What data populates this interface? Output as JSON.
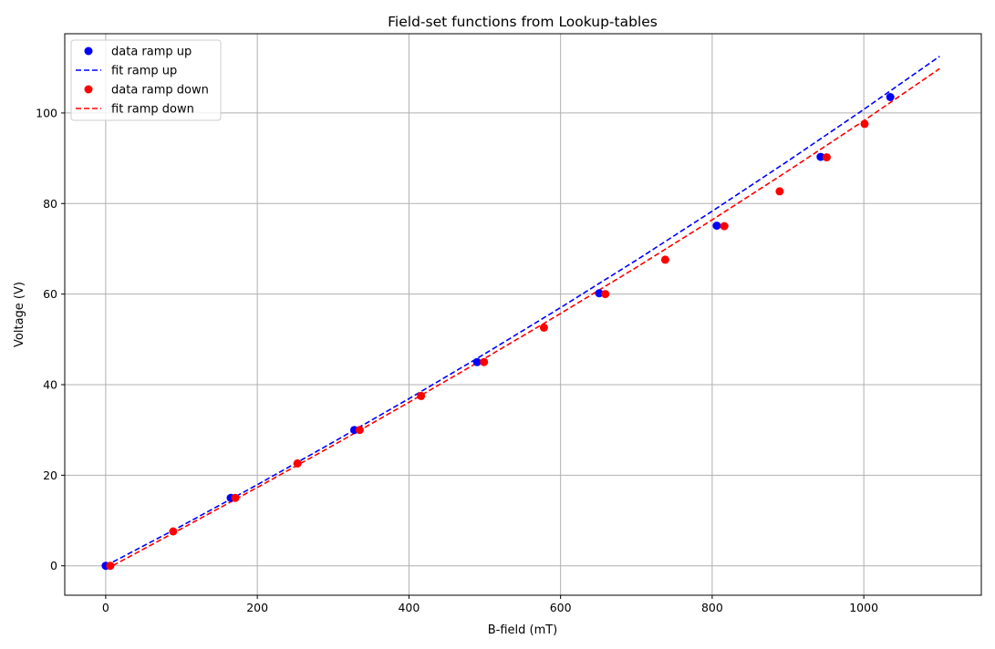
{
  "chart_data": {
    "type": "scatter",
    "title": "Field-set functions from Lookup-tables",
    "xlabel": "B-field (mT)",
    "ylabel": "Voltage (V)",
    "xlim": [
      -54,
      1155
    ],
    "ylim": [
      -6.5,
      117.5
    ],
    "xticks": [
      0,
      200,
      400,
      600,
      800,
      1000
    ],
    "yticks": [
      0,
      20,
      40,
      60,
      80,
      100
    ],
    "grid": true,
    "legend_position": "top-left",
    "series": [
      {
        "name": "data ramp up",
        "kind": "points",
        "color": "#0000ff",
        "points": [
          [
            0,
            0
          ],
          [
            165,
            15
          ],
          [
            328,
            30
          ],
          [
            490,
            45
          ],
          [
            651,
            60.2
          ],
          [
            806,
            75.1
          ],
          [
            943,
            90.3
          ],
          [
            1035,
            103.5
          ]
        ]
      },
      {
        "name": "fit ramp up",
        "kind": "dashed-line",
        "color": "#0000ff",
        "points": [
          [
            0,
            0
          ],
          [
            100,
            8.8
          ],
          [
            200,
            17.9
          ],
          [
            300,
            27.3
          ],
          [
            400,
            36.9
          ],
          [
            500,
            46.8
          ],
          [
            600,
            57.0
          ],
          [
            700,
            67.5
          ],
          [
            800,
            78.3
          ],
          [
            900,
            89.4
          ],
          [
            1000,
            100.8
          ],
          [
            1100,
            112.5
          ]
        ]
      },
      {
        "name": "data ramp down",
        "kind": "points",
        "color": "#ff0000",
        "points": [
          [
            6,
            0
          ],
          [
            89,
            7.6
          ],
          [
            171,
            15
          ],
          [
            253,
            22.6
          ],
          [
            335,
            30
          ],
          [
            416,
            37.5
          ],
          [
            499,
            45
          ],
          [
            578,
            52.6
          ],
          [
            659,
            60
          ],
          [
            738,
            67.6
          ],
          [
            816,
            75
          ],
          [
            889,
            82.7
          ],
          [
            951,
            90.2
          ],
          [
            1001,
            97.6
          ]
        ]
      },
      {
        "name": "fit ramp down",
        "kind": "dashed-line",
        "color": "#ff0000",
        "points": [
          [
            0,
            -0.8
          ],
          [
            100,
            8.2
          ],
          [
            200,
            17.3
          ],
          [
            300,
            26.6
          ],
          [
            400,
            36.1
          ],
          [
            500,
            45.8
          ],
          [
            600,
            55.7
          ],
          [
            700,
            65.9
          ],
          [
            800,
            76.4
          ],
          [
            900,
            87.2
          ],
          [
            1000,
            98.3
          ],
          [
            1100,
            109.8
          ]
        ]
      }
    ]
  }
}
